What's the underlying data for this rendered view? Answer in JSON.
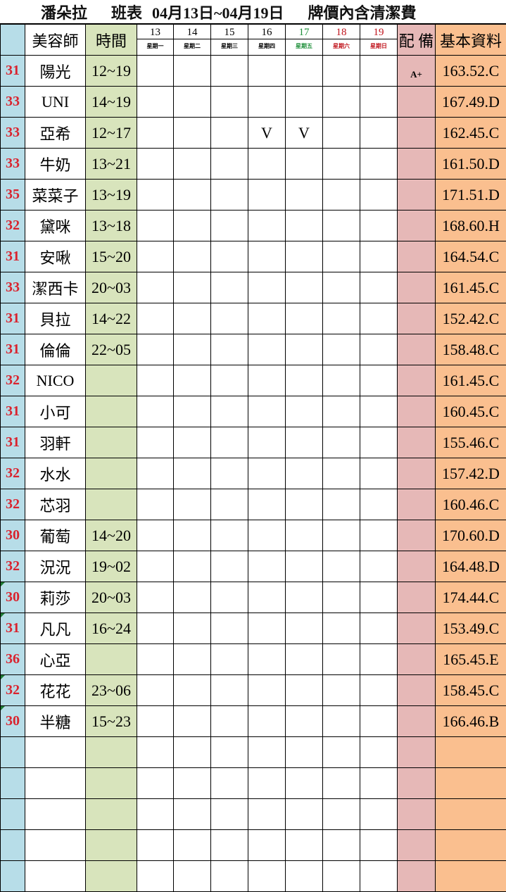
{
  "title": {
    "shop": "潘朵拉",
    "schedule": "班表",
    "range": "04月13日~04月19日",
    "note": "牌價內含清潔費"
  },
  "header": {
    "stylist": "美容師",
    "time": "時間",
    "equip": "配 備",
    "info": "基本資料",
    "days": [
      {
        "d": "13",
        "w": "星期一",
        "color": "#000000"
      },
      {
        "d": "14",
        "w": "星期二",
        "color": "#000000"
      },
      {
        "d": "15",
        "w": "星期三",
        "color": "#000000"
      },
      {
        "d": "16",
        "w": "星期四",
        "color": "#000000"
      },
      {
        "d": "17",
        "w": "星期五",
        "color": "#1e8f3a"
      },
      {
        "d": "18",
        "w": "星期六",
        "color": "#c0141c"
      },
      {
        "d": "19",
        "w": "星期日",
        "color": "#c0141c"
      }
    ]
  },
  "colors": {
    "number_col": "#b7dde8",
    "time_col": "#d8e4bc",
    "equip_col": "#e6b8b7",
    "info_col": "#fabf8f",
    "number_text": "#d9232e"
  },
  "rows": [
    {
      "n": "31",
      "name": "陽光",
      "time": "12~19",
      "marks": [
        "",
        "",
        "",
        "",
        "",
        "",
        ""
      ],
      "equip": "A+",
      "info": "163.52.C"
    },
    {
      "n": "33",
      "name": "UNI",
      "time": "14~19",
      "marks": [
        "",
        "",
        "",
        "",
        "",
        "",
        ""
      ],
      "equip": "",
      "info": "167.49.D"
    },
    {
      "n": "33",
      "name": "亞希",
      "time": "12~17",
      "marks": [
        "",
        "",
        "",
        "V",
        "V",
        "",
        ""
      ],
      "equip": "",
      "info": "162.45.C"
    },
    {
      "n": "33",
      "name": "牛奶",
      "time": "13~21",
      "marks": [
        "",
        "",
        "",
        "",
        "",
        "",
        ""
      ],
      "equip": "",
      "info": "161.50.D"
    },
    {
      "n": "35",
      "name": "菜菜子",
      "time": "13~19",
      "marks": [
        "",
        "",
        "",
        "",
        "",
        "",
        ""
      ],
      "equip": "",
      "info": "171.51.D"
    },
    {
      "n": "32",
      "name": "黛咪",
      "time": "13~18",
      "marks": [
        "",
        "",
        "",
        "",
        "",
        "",
        ""
      ],
      "equip": "",
      "info": "168.60.H"
    },
    {
      "n": "31",
      "name": "安啾",
      "time": "15~20",
      "marks": [
        "",
        "",
        "",
        "",
        "",
        "",
        ""
      ],
      "equip": "",
      "info": "164.54.C"
    },
    {
      "n": "33",
      "name": "潔西卡",
      "time": "20~03",
      "marks": [
        "",
        "",
        "",
        "",
        "",
        "",
        ""
      ],
      "equip": "",
      "info": "161.45.C"
    },
    {
      "n": "31",
      "name": "貝拉",
      "time": "14~22",
      "marks": [
        "",
        "",
        "",
        "",
        "",
        "",
        ""
      ],
      "equip": "",
      "info": "152.42.C"
    },
    {
      "n": "31",
      "name": "倫倫",
      "time": "22~05",
      "marks": [
        "",
        "",
        "",
        "",
        "",
        "",
        ""
      ],
      "equip": "",
      "info": "158.48.C"
    },
    {
      "n": "32",
      "name": "NICO",
      "time": "",
      "marks": [
        "",
        "",
        "",
        "",
        "",
        "",
        ""
      ],
      "equip": "",
      "info": "161.45.C"
    },
    {
      "n": "31",
      "name": "小可",
      "time": "",
      "marks": [
        "",
        "",
        "",
        "",
        "",
        "",
        ""
      ],
      "equip": "",
      "info": "160.45.C"
    },
    {
      "n": "31",
      "name": "羽軒",
      "time": "",
      "marks": [
        "",
        "",
        "",
        "",
        "",
        "",
        ""
      ],
      "equip": "",
      "info": "155.46.C"
    },
    {
      "n": "32",
      "name": "水水",
      "time": "",
      "marks": [
        "",
        "",
        "",
        "",
        "",
        "",
        ""
      ],
      "equip": "",
      "info": "157.42.D"
    },
    {
      "n": "32",
      "name": "芯羽",
      "time": "",
      "marks": [
        "",
        "",
        "",
        "",
        "",
        "",
        ""
      ],
      "equip": "",
      "info": "160.46.C"
    },
    {
      "n": "30",
      "name": "葡萄",
      "time": "14~20",
      "marks": [
        "",
        "",
        "",
        "",
        "",
        "",
        ""
      ],
      "equip": "",
      "info": "170.60.D"
    },
    {
      "n": "32",
      "name": "況況",
      "time": "19~02",
      "marks": [
        "",
        "",
        "",
        "",
        "",
        "",
        ""
      ],
      "equip": "",
      "info": "164.48.D"
    },
    {
      "n": "30",
      "name": "莉莎",
      "time": "20~03",
      "marks": [
        "",
        "",
        "",
        "",
        "",
        "",
        ""
      ],
      "equip": "",
      "info": "174.44.C",
      "flag": true
    },
    {
      "n": "31",
      "name": "凡凡",
      "time": "16~24",
      "marks": [
        "",
        "",
        "",
        "",
        "",
        "",
        ""
      ],
      "equip": "",
      "info": "153.49.C",
      "flag": true
    },
    {
      "n": "36",
      "name": "心亞",
      "time": "",
      "marks": [
        "",
        "",
        "",
        "",
        "",
        "",
        ""
      ],
      "equip": "",
      "info": "165.45.E"
    },
    {
      "n": "32",
      "name": "花花",
      "time": "23~06",
      "marks": [
        "",
        "",
        "",
        "",
        "",
        "",
        ""
      ],
      "equip": "",
      "info": "158.45.C",
      "flag": true
    },
    {
      "n": "30",
      "name": "半糖",
      "time": "15~23",
      "marks": [
        "",
        "",
        "",
        "",
        "",
        "",
        ""
      ],
      "equip": "",
      "info": "166.46.B",
      "flag": true
    }
  ]
}
